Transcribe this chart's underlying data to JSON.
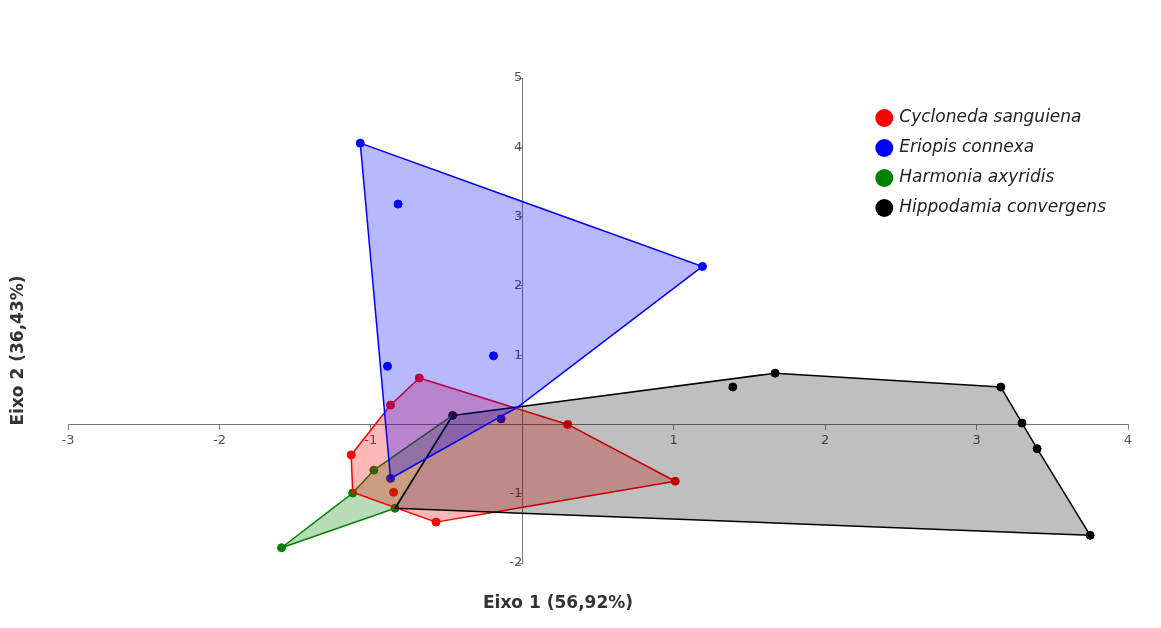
{
  "chart_data": {
    "type": "scatter",
    "xlabel": "Eixo 1 (56,92%)",
    "ylabel": "Eixo 2 (36,43%)",
    "xlim": [
      -3,
      4
    ],
    "ylim": [
      -2,
      5
    ],
    "xticks": [
      -3,
      -2,
      -1,
      {
        "value": 0,
        "label": null
      },
      1,
      2,
      3,
      4
    ],
    "yticks": [
      -2,
      -1,
      {
        "value": 0,
        "label": null
      },
      1,
      2,
      3,
      4,
      5
    ],
    "grid": false,
    "legend": "top right",
    "marker": "circle",
    "series": [
      {
        "type": "area",
        "marker": "none",
        "color": "#0000ff",
        "x": [
          -1.07,
          1.19,
          -0.03,
          -0.87,
          -1.07
        ],
        "values": [
          4.06,
          2.28,
          0.25,
          -0.78,
          4.06
        ]
      },
      {
        "type": "area",
        "marker": "none",
        "color": "#000000",
        "x": [
          -0.46,
          -0.03,
          1.67,
          3.16,
          3.3,
          3.4,
          3.75,
          -0.84,
          -0.46
        ],
        "values": [
          0.13,
          0.25,
          0.74,
          0.54,
          0.02,
          -0.35,
          -1.6,
          -1.21,
          0.13
        ]
      },
      {
        "type": "area",
        "marker": "none",
        "color": "#ff0000",
        "x": [
          -0.87,
          -0.68,
          0.3,
          1.01,
          -0.57,
          -1.12,
          -1.13,
          -0.87
        ],
        "values": [
          0.28,
          0.67,
          0,
          -0.82,
          -1.41,
          -0.98,
          -0.44,
          0.28
        ]
      },
      {
        "type": "area",
        "marker": "none",
        "color": "#008000",
        "x": [
          -1.59,
          -1.12,
          -0.98,
          -0.46,
          -0.84,
          -1.59
        ],
        "values": [
          -1.78,
          -0.99,
          -0.66,
          0.13,
          -1.21,
          -1.78
        ]
      },
      {
        "name": "Cycloneda sanguiena",
        "color": "#ff0000",
        "x": [
          -0.68,
          -0.87,
          0.3,
          1.01,
          -0.57,
          -0.85,
          -1.13
        ],
        "values": [
          0.67,
          0.28,
          0,
          -0.82,
          -1.41,
          -0.98,
          -0.44
        ]
      },
      {
        "name": "Eriopis connexa",
        "color": "#0000ff",
        "x": [
          -1.07,
          -0.82,
          1.19,
          -0.19,
          -0.89,
          -0.14,
          -0.87
        ],
        "values": [
          4.06,
          3.18,
          2.28,
          0.99,
          0.84,
          0.08,
          -0.78
        ]
      },
      {
        "name": "Harmonia axyridis",
        "color": "#008000",
        "x": [
          -1.59,
          -1.12,
          -0.98,
          -0.84
        ],
        "values": [
          -1.78,
          -0.99,
          -0.66,
          -1.21
        ]
      },
      {
        "name": "Hippodamia convergens",
        "color": "#000000",
        "x": [
          -0.46,
          1.39,
          1.67,
          3.16,
          3.3,
          3.4,
          3.75
        ],
        "values": [
          0.13,
          0.54,
          0.74,
          0.54,
          0.02,
          -0.35,
          -1.6
        ]
      }
    ]
  }
}
